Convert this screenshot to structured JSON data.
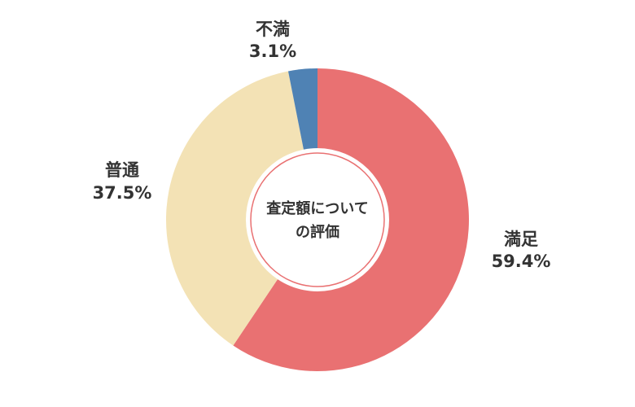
{
  "chart_data": {
    "type": "pie",
    "center_label": [
      "査定額について",
      "の評価"
    ],
    "categories": [
      "満足",
      "普通",
      "不満"
    ],
    "values": [
      59.4,
      37.5,
      3.1
    ],
    "value_labels": [
      "59.4%",
      "37.5%",
      "3.1%"
    ],
    "colors": [
      "#e97172",
      "#f3e2b5",
      "#4f82b4"
    ]
  }
}
